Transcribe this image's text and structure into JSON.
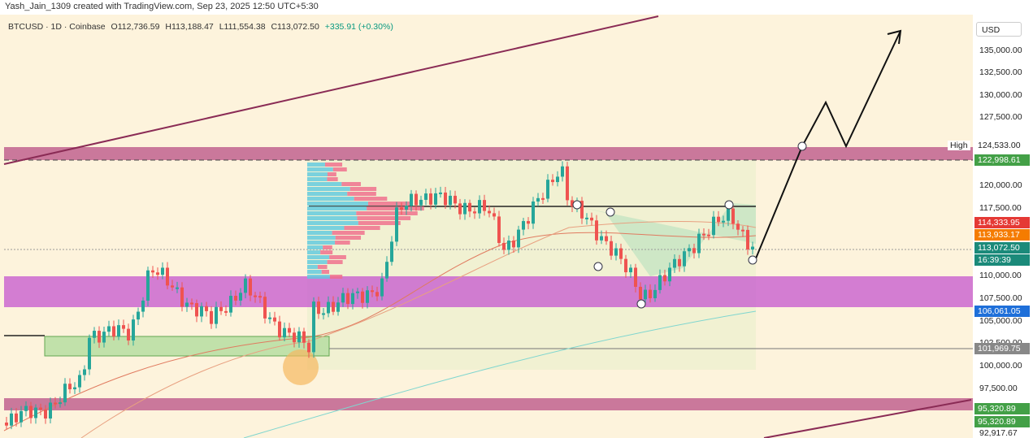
{
  "header": {
    "credit": "Yash_Jain_1309 created with TradingView.com, Sep 23, 2025 12:50 UTC+5:30"
  },
  "symbol": {
    "name": "BTCUSD · 1D · Coinbase",
    "open": "O112,736.59",
    "high": "H113,188.47",
    "low": "L111,554.38",
    "close": "C113,072.50",
    "change": "+335.91 (+0.30%)"
  },
  "price_axis": {
    "currency": "USD",
    "labels": [
      "135,000.00",
      "132,500.00",
      "130,000.00",
      "127,500.00",
      "120,000.00",
      "117,500.00",
      "110,000.00",
      "107,500.00",
      "105,000.00",
      "102,500.00",
      "100,000.00",
      "97,500.00",
      "92,917.67"
    ]
  },
  "price_tags": {
    "high_label": "High",
    "high": "124,533.00",
    "tags": [
      "122,998.61",
      "114,333.95",
      "113,933.17",
      "113,072.50",
      "16:39:39",
      "106,061.05",
      "101,969.75",
      "95,320.89",
      "95,320.89"
    ]
  }
}
